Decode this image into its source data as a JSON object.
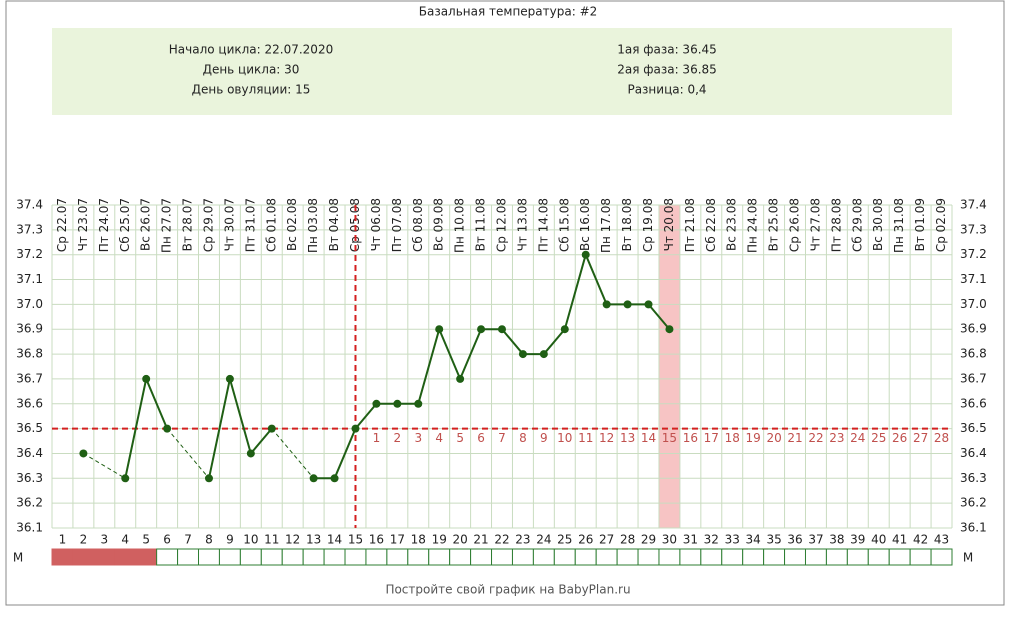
{
  "chart_data": {
    "type": "line",
    "title": "Базальная температура: #2",
    "info_left": [
      "Начало цикла: 22.07.2020",
      "День цикла: 30",
      "День овуляции: 15"
    ],
    "info_right": [
      "1ая фаза: 36.45",
      "2ая фаза: 36.85",
      "Разница: 0,4"
    ],
    "dates": [
      "Ср 22.07",
      "Чт 23.07",
      "Пт 24.07",
      "Сб 25.07",
      "Вс 26.07",
      "Пн 27.07",
      "Вт 28.07",
      "Ср 29.07",
      "Чт 30.07",
      "Пт 31.07",
      "Сб 01.08",
      "Вс 02.08",
      "Пн 03.08",
      "Вт 04.08",
      "Ср 05.08",
      "Чт 06.08",
      "Пт 07.08",
      "Сб 08.08",
      "Вс 09.08",
      "Пн 10.08",
      "Вт 11.08",
      "Ср 12.08",
      "Чт 13.08",
      "Пт 14.08",
      "Сб 15.08",
      "Вс 16.08",
      "Пн 17.08",
      "Вт 18.08",
      "Ср 19.08",
      "Чт 20.08",
      "Пт 21.08",
      "Сб 22.08",
      "Вс 23.08",
      "Пн 24.08",
      "Вт 25.08",
      "Ср 26.08",
      "Чт 27.08",
      "Пт 28.08",
      "Сб 29.08",
      "Вс 30.08",
      "Пн 31.08",
      "Вт 01.09",
      "Ср 02.09"
    ],
    "days": [
      1,
      2,
      3,
      4,
      5,
      6,
      7,
      8,
      9,
      10,
      11,
      12,
      13,
      14,
      15,
      16,
      17,
      18,
      19,
      20,
      21,
      22,
      23,
      24,
      25,
      26,
      27,
      28,
      29,
      30,
      31,
      32,
      33,
      34,
      35,
      36,
      37,
      38,
      39,
      40,
      41,
      42,
      43
    ],
    "values": [
      null,
      36.4,
      null,
      36.3,
      36.7,
      36.5,
      null,
      36.3,
      36.7,
      36.4,
      36.5,
      null,
      36.3,
      36.3,
      36.5,
      36.6,
      36.6,
      36.6,
      36.9,
      36.7,
      36.9,
      36.9,
      36.8,
      36.8,
      36.9,
      37.2,
      37.0,
      37.0,
      37.0,
      36.9,
      null,
      null,
      null,
      null,
      null,
      null,
      null,
      null,
      null,
      null,
      null,
      null,
      null
    ],
    "phase2_labels": [
      null,
      null,
      null,
      null,
      null,
      null,
      null,
      null,
      null,
      null,
      null,
      null,
      null,
      null,
      null,
      1,
      2,
      3,
      4,
      5,
      6,
      7,
      8,
      9,
      10,
      11,
      12,
      13,
      14,
      15,
      16,
      17,
      18,
      19,
      20,
      21,
      22,
      23,
      24,
      25,
      26,
      27,
      28
    ],
    "menstruation": [
      true,
      true,
      true,
      true,
      true,
      false,
      false,
      false,
      false,
      false,
      false,
      false,
      false,
      false,
      false,
      false,
      false,
      false,
      false,
      false,
      false,
      false,
      false,
      false,
      false,
      false,
      false,
      false,
      false,
      false,
      false,
      false,
      false,
      false,
      false,
      false,
      false,
      false,
      false,
      false,
      false,
      false,
      false
    ],
    "menstruation_label": "М",
    "coverline": 36.5,
    "ovulation_day": 15,
    "current_day": 30,
    "color": "#1f5f14",
    "ylim": [
      36.1,
      37.4
    ],
    "yticks": [
      36.1,
      36.2,
      36.3,
      36.4,
      36.5,
      36.6,
      36.7,
      36.8,
      36.9,
      {
        "value": 37,
        "label": "37.0"
      },
      37.1,
      37.2,
      37.3,
      37.4
    ],
    "grid": true,
    "footer": "Постройте свой график на BabyPlan.ru"
  }
}
